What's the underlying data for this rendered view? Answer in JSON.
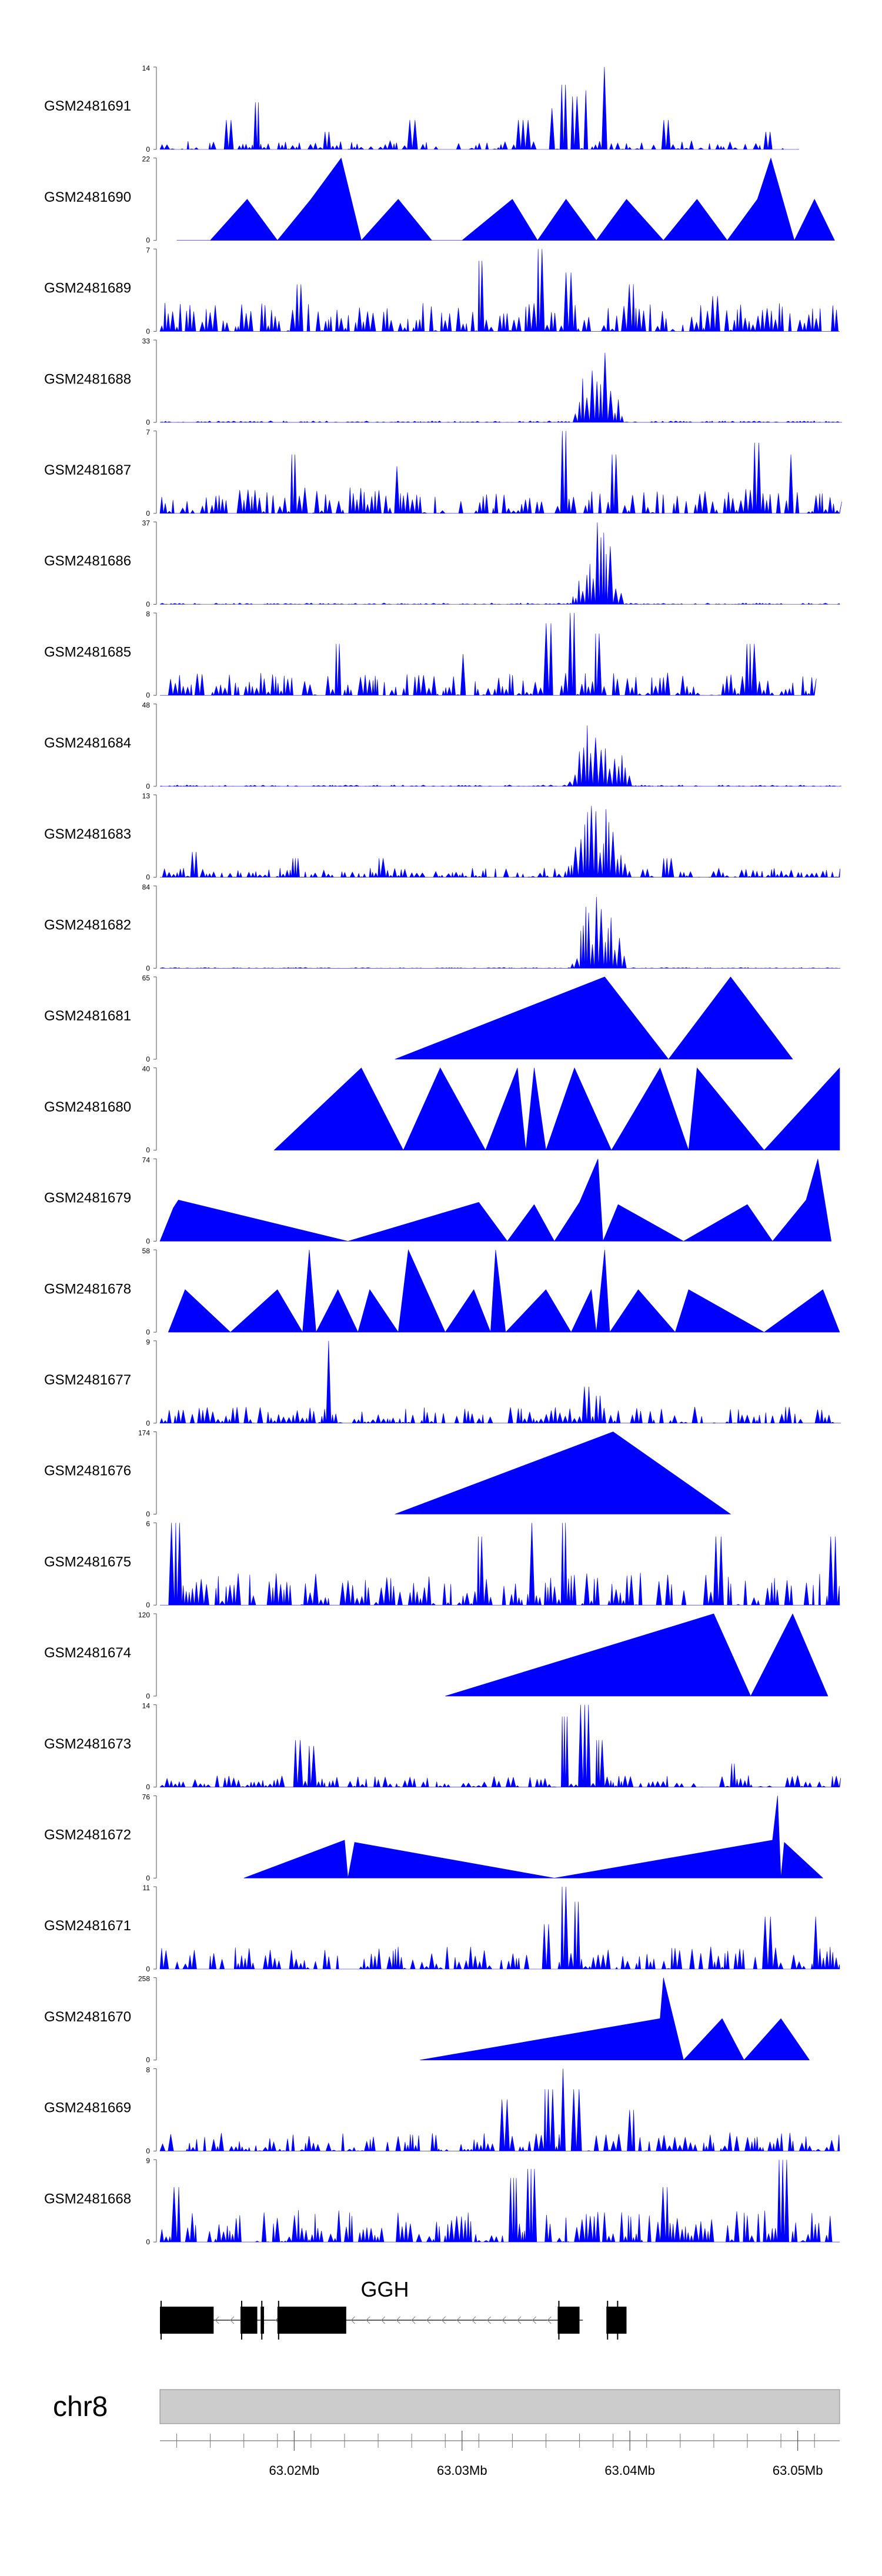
{
  "colors": {
    "signal": "#0000ff",
    "exon": "#000000",
    "ideogram": "#cccccc",
    "axis": "#555555",
    "text": "#000000"
  },
  "chart_data": {
    "type": "area",
    "title": "",
    "xlabel": "",
    "ylabel": "",
    "chromosome": "chr8",
    "xlim": [
      63.012,
      63.0525
    ],
    "x_ticks": [
      {
        "value": 63.02,
        "label": "63.02Mb"
      },
      {
        "value": 63.03,
        "label": "63.03Mb"
      },
      {
        "value": 63.04,
        "label": "63.04Mb"
      },
      {
        "value": 63.05,
        "label": "63.05Mb"
      }
    ],
    "minor_ticks": [
      63.013,
      63.015,
      63.017,
      63.019,
      63.021,
      63.023,
      63.025,
      63.027,
      63.029,
      63.031,
      63.033,
      63.035,
      63.037,
      63.039,
      63.041,
      63.043,
      63.045,
      63.047,
      63.049,
      63.051
    ],
    "gene": {
      "name": "GGH",
      "strand": "-",
      "start": 63.012,
      "end": 63.0372,
      "exons": [
        [
          63.012,
          63.0152
        ],
        [
          63.0168,
          63.0178
        ],
        [
          63.018,
          63.0182
        ],
        [
          63.019,
          63.0231
        ],
        [
          63.0357,
          63.037
        ],
        [
          63.0386,
          63.0397
        ],
        [
          63.0392,
          63.0398
        ]
      ]
    },
    "series": [
      {
        "name": "GSM2481691",
        "ymax": 14,
        "kind": "noise",
        "base": 1.5,
        "spikes": [
          [
            63.016,
            5
          ],
          [
            63.0177,
            8
          ],
          [
            63.0218,
            3
          ],
          [
            63.027,
            5
          ],
          [
            63.0335,
            5
          ],
          [
            63.0352,
            7
          ],
          [
            63.036,
            11
          ],
          [
            63.0366,
            9
          ],
          [
            63.0373,
            10
          ],
          [
            63.0385,
            14
          ],
          [
            63.042,
            5
          ],
          [
            63.048,
            3
          ],
          [
            63.0505,
            4
          ]
        ],
        "peak": null,
        "end": 63.05
      },
      {
        "name": "GSM2481690",
        "ymax": 22,
        "kind": "tri",
        "pts": [
          [
            63.013,
            0
          ],
          [
            63.015,
            0
          ],
          [
            63.0172,
            11
          ],
          [
            63.019,
            0
          ],
          [
            63.021,
            11
          ],
          [
            63.0228,
            22
          ],
          [
            63.024,
            0
          ],
          [
            63.0262,
            11
          ],
          [
            63.0282,
            0
          ],
          [
            63.03,
            0
          ],
          [
            63.033,
            11
          ],
          [
            63.0345,
            0
          ],
          [
            63.0362,
            11
          ],
          [
            63.038,
            0
          ],
          [
            63.0398,
            11
          ],
          [
            63.042,
            0
          ],
          [
            63.044,
            11
          ],
          [
            63.0458,
            0
          ],
          [
            63.0476,
            11
          ],
          [
            63.0484,
            22
          ],
          [
            63.0498,
            0
          ],
          [
            63.051,
            11
          ],
          [
            63.0522,
            0
          ]
        ]
      },
      {
        "name": "GSM2481689",
        "ymax": 7,
        "kind": "noise",
        "base": 2.5,
        "spikes": [
          [
            63.0202,
            4
          ],
          [
            63.031,
            6
          ],
          [
            63.0345,
            7
          ],
          [
            63.0362,
            5
          ],
          [
            63.04,
            4
          ],
          [
            63.045,
            3
          ]
        ],
        "peak": null,
        "end": 63.0525
      },
      {
        "name": "GSM2481688",
        "ymax": 33,
        "kind": "noise",
        "base": 0.6,
        "spikes": [],
        "peak": {
          "start": 63.0365,
          "end": 63.0395,
          "max": 33
        },
        "end": 63.0525
      },
      {
        "name": "GSM2481687",
        "ymax": 7,
        "kind": "noise",
        "base": 2.2,
        "spikes": [
          [
            63.0198,
            5
          ],
          [
            63.026,
            4
          ],
          [
            63.036,
            7
          ],
          [
            63.039,
            5
          ],
          [
            63.0475,
            6
          ],
          [
            63.0495,
            5
          ]
        ],
        "peak": null,
        "end": 63.0525
      },
      {
        "name": "GSM2481686",
        "ymax": 37,
        "kind": "noise",
        "base": 0.6,
        "spikes": [],
        "peak": {
          "start": 63.0365,
          "end": 63.0395,
          "max": 37
        },
        "end": 63.0525
      },
      {
        "name": "GSM2481685",
        "ymax": 8,
        "kind": "noise",
        "base": 2.2,
        "spikes": [
          [
            63.0225,
            5
          ],
          [
            63.03,
            4
          ],
          [
            63.035,
            7
          ],
          [
            63.0365,
            8
          ],
          [
            63.038,
            6
          ],
          [
            63.047,
            5
          ]
        ],
        "peak": null,
        "end": 63.051
      },
      {
        "name": "GSM2481684",
        "ymax": 48,
        "kind": "noise",
        "base": 0.8,
        "spikes": [],
        "peak": {
          "start": 63.036,
          "end": 63.04,
          "max": 48
        },
        "end": 63.0525
      },
      {
        "name": "GSM2481683",
        "ymax": 13,
        "kind": "noise",
        "base": 1.5,
        "spikes": [
          [
            63.014,
            4
          ],
          [
            63.02,
            3
          ],
          [
            63.025,
            3
          ],
          [
            63.042,
            3
          ]
        ],
        "peak": {
          "start": 63.036,
          "end": 63.04,
          "max": 13
        },
        "end": 63.0525
      },
      {
        "name": "GSM2481682",
        "ymax": 84,
        "kind": "noise",
        "base": 0.8,
        "spikes": [],
        "peak": {
          "start": 63.0363,
          "end": 63.0397,
          "max": 84
        },
        "end": 63.0525
      },
      {
        "name": "GSM2481681",
        "ymax": 65,
        "kind": "tri",
        "pts": [
          [
            63.026,
            0
          ],
          [
            63.0385,
            65
          ],
          [
            63.0423,
            0
          ],
          [
            63.046,
            65
          ],
          [
            63.0497,
            0
          ]
        ]
      },
      {
        "name": "GSM2481680",
        "ymax": 40,
        "kind": "tri",
        "pts": [
          [
            63.0188,
            0
          ],
          [
            63.024,
            40
          ],
          [
            63.0265,
            0
          ],
          [
            63.0287,
            40
          ],
          [
            63.0314,
            0
          ],
          [
            63.0333,
            40
          ],
          [
            63.0338,
            0
          ],
          [
            63.0343,
            40
          ],
          [
            63.035,
            0
          ],
          [
            63.0367,
            40
          ],
          [
            63.0389,
            0
          ],
          [
            63.0418,
            40
          ],
          [
            63.0435,
            0
          ],
          [
            63.044,
            40
          ],
          [
            63.048,
            0
          ],
          [
            63.0525,
            40
          ]
        ]
      },
      {
        "name": "GSM2481679",
        "ymax": 74,
        "kind": "tri",
        "pts": [
          [
            63.012,
            0
          ],
          [
            63.0128,
            30
          ],
          [
            63.0131,
            37
          ],
          [
            63.0232,
            0
          ],
          [
            63.031,
            35
          ],
          [
            63.0327,
            0
          ],
          [
            63.0343,
            33
          ],
          [
            63.0355,
            0
          ],
          [
            63.037,
            35
          ],
          [
            63.0381,
            74
          ],
          [
            63.0384,
            0
          ],
          [
            63.0393,
            33
          ],
          [
            63.0432,
            0
          ],
          [
            63.047,
            33
          ],
          [
            63.0485,
            0
          ],
          [
            63.0505,
            37
          ],
          [
            63.0512,
            74
          ],
          [
            63.052,
            0
          ]
        ]
      },
      {
        "name": "GSM2481678",
        "ymax": 58,
        "kind": "tri",
        "pts": [
          [
            63.0125,
            0
          ],
          [
            63.0135,
            30
          ],
          [
            63.0162,
            0
          ],
          [
            63.019,
            30
          ],
          [
            63.0205,
            0
          ],
          [
            63.0209,
            58
          ],
          [
            63.0213,
            0
          ],
          [
            63.0226,
            30
          ],
          [
            63.0238,
            0
          ],
          [
            63.0245,
            30
          ],
          [
            63.0262,
            0
          ],
          [
            63.0268,
            58
          ],
          [
            63.029,
            0
          ],
          [
            63.0307,
            30
          ],
          [
            63.0317,
            0
          ],
          [
            63.032,
            58
          ],
          [
            63.0326,
            0
          ],
          [
            63.035,
            30
          ],
          [
            63.0365,
            0
          ],
          [
            63.0377,
            30
          ],
          [
            63.038,
            0
          ],
          [
            63.0385,
            58
          ],
          [
            63.0388,
            0
          ],
          [
            63.0405,
            30
          ],
          [
            63.0427,
            0
          ],
          [
            63.0435,
            30
          ],
          [
            63.048,
            0
          ],
          [
            63.0515,
            30
          ],
          [
            63.0525,
            0
          ]
        ]
      },
      {
        "name": "GSM2481677",
        "ymax": 9,
        "kind": "noise",
        "base": 1.8,
        "spikes": [
          [
            63.022,
            9
          ],
          [
            63.0372,
            4
          ],
          [
            63.038,
            3
          ]
        ],
        "peak": null,
        "end": 63.0525
      },
      {
        "name": "GSM2481676",
        "ymax": 174,
        "kind": "tri",
        "pts": [
          [
            63.026,
            0
          ],
          [
            63.039,
            174
          ],
          [
            63.046,
            0
          ]
        ]
      },
      {
        "name": "GSM2481675",
        "ymax": 6,
        "kind": "noise",
        "base": 2.4,
        "spikes": [
          [
            63.0128,
            6
          ],
          [
            63.031,
            5
          ],
          [
            63.034,
            6
          ],
          [
            63.036,
            6
          ],
          [
            63.045,
            5
          ],
          [
            63.052,
            5
          ]
        ],
        "peak": null,
        "end": 63.0525
      },
      {
        "name": "GSM2481674",
        "ymax": 120,
        "kind": "tri",
        "pts": [
          [
            63.029,
            0
          ],
          [
            63.045,
            120
          ],
          [
            63.0472,
            0
          ],
          [
            63.0497,
            120
          ],
          [
            63.0518,
            0
          ]
        ]
      },
      {
        "name": "GSM2481673",
        "ymax": 14,
        "kind": "noise",
        "base": 2.0,
        "spikes": [
          [
            63.02,
            8
          ],
          [
            63.0208,
            7
          ],
          [
            63.036,
            12
          ],
          [
            63.0372,
            14
          ],
          [
            63.038,
            8
          ],
          [
            63.046,
            4
          ]
        ],
        "peak": null,
        "end": 63.0525
      },
      {
        "name": "GSM2481672",
        "ymax": 76,
        "kind": "tri",
        "pts": [
          [
            63.017,
            0
          ],
          [
            63.023,
            35
          ],
          [
            63.0232,
            0
          ],
          [
            63.0236,
            33
          ],
          [
            63.0355,
            0
          ],
          [
            63.0485,
            35
          ],
          [
            63.0488,
            76
          ],
          [
            63.049,
            0
          ],
          [
            63.0492,
            33
          ],
          [
            63.0515,
            0
          ]
        ]
      },
      {
        "name": "GSM2481671",
        "ymax": 11,
        "kind": "noise",
        "base": 3.0,
        "spikes": [
          [
            63.036,
            11
          ],
          [
            63.035,
            6
          ],
          [
            63.0367,
            9
          ],
          [
            63.048,
            7
          ],
          [
            63.051,
            7
          ]
        ],
        "peak": null,
        "end": 63.0525
      },
      {
        "name": "GSM2481670",
        "ymax": 258,
        "kind": "tri",
        "pts": [
          [
            63.0275,
            0
          ],
          [
            63.0418,
            130
          ],
          [
            63.042,
            258
          ],
          [
            63.0432,
            0
          ],
          [
            63.0455,
            130
          ],
          [
            63.0468,
            0
          ],
          [
            63.049,
            130
          ],
          [
            63.0507,
            0
          ]
        ]
      },
      {
        "name": "GSM2481669",
        "ymax": 8,
        "kind": "noise",
        "base": 1.8,
        "spikes": [
          [
            63.0325,
            5
          ],
          [
            63.035,
            6
          ],
          [
            63.036,
            8
          ],
          [
            63.0367,
            6
          ],
          [
            63.04,
            4
          ]
        ],
        "peak": null,
        "end": 63.0525
      },
      {
        "name": "GSM2481668",
        "ymax": 9,
        "kind": "noise",
        "base": 3.5,
        "spikes": [
          [
            63.0128,
            6
          ],
          [
            63.034,
            8
          ],
          [
            63.033,
            7
          ],
          [
            63.042,
            6
          ],
          [
            63.049,
            9
          ]
        ],
        "peak": null,
        "end": 63.0525
      }
    ]
  }
}
